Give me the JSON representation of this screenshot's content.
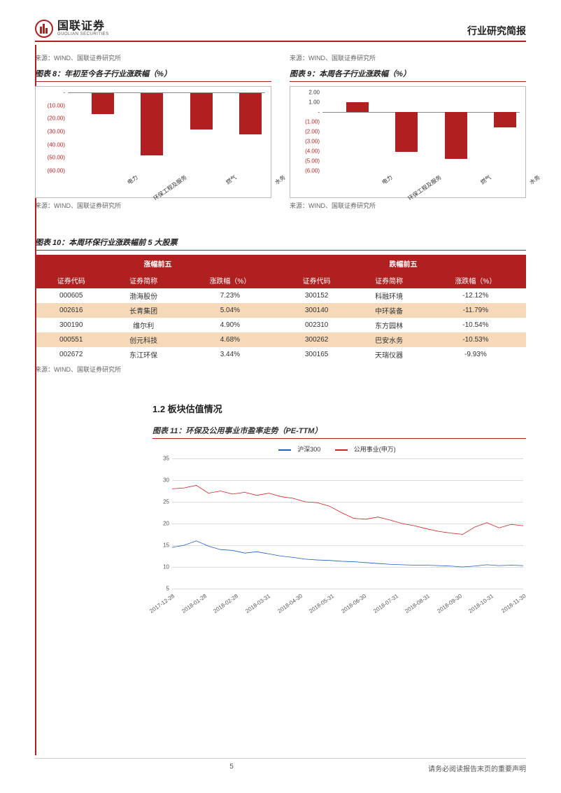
{
  "header": {
    "logo_cn": "国联证券",
    "logo_en": "GUOLIAN SECURITIES",
    "title": "行业研究简报"
  },
  "colors": {
    "brand_red": "#b02020",
    "blue": "#1f5fbf",
    "alt_row": "#f5d9b8",
    "grid": "#dddddd",
    "bg": "#ffffff"
  },
  "source_text": "来源：WIND、国联证券研究所",
  "chart8": {
    "title": "图表 8：年初至今各子行业涨跌幅（%）",
    "type": "bar",
    "categories": [
      "电力",
      "环保工程及服务",
      "燃气",
      "水务"
    ],
    "values": [
      -16,
      -48,
      -28,
      -32
    ],
    "ylim": [
      -60,
      0
    ],
    "yticks": [
      "-",
      "(10.00)",
      "(20.00)",
      "(30.00)",
      "(40.00)",
      "(50.00)",
      "(60.00)"
    ],
    "bar_color": "#b02020"
  },
  "chart9": {
    "title": "图表 9：本周各子行业涨跌幅（%）",
    "type": "bar",
    "categories": [
      "电力",
      "环保工程及服务",
      "燃气",
      "水务"
    ],
    "values": [
      1.0,
      -4.1,
      -4.8,
      -1.6
    ],
    "ylim": [
      -6,
      2
    ],
    "yticks_pos": [
      "2.00",
      "1.00",
      "-"
    ],
    "yticks_neg": [
      "(1.00)",
      "(2.00)",
      "(3.00)",
      "(4.00)",
      "(5.00)",
      "(6.00)"
    ],
    "bar_color": "#b02020"
  },
  "table10": {
    "title": "图表 10：本周环保行业涨跌幅前 5 大股票",
    "header_top": [
      "涨幅前五",
      "跌幅前五"
    ],
    "columns": [
      "证券代码",
      "证券简称",
      "涨跌幅（%）",
      "证券代码",
      "证券简称",
      "涨跌幅（%）"
    ],
    "rows": [
      [
        "000605",
        "渤海股份",
        "7.23%",
        "300152",
        "科融环境",
        "-12.12%"
      ],
      [
        "002616",
        "长青集团",
        "5.04%",
        "300140",
        "中环装备",
        "-11.79%"
      ],
      [
        "300190",
        "维尔利",
        "4.90%",
        "002310",
        "东方园林",
        "-10.54%"
      ],
      [
        "000551",
        "创元科技",
        "4.68%",
        "300262",
        "巴安水务",
        "-10.53%"
      ],
      [
        "002672",
        "东江环保",
        "3.44%",
        "300165",
        "天瑞仪器",
        "-9.93%"
      ]
    ]
  },
  "section12": "1.2 板块估值情况",
  "chart11": {
    "title": "图表 11：环保及公用事业市盈率走势（PE-TTM）",
    "type": "line",
    "legend": [
      "沪深300",
      "公用事业(申万)"
    ],
    "legend_colors": [
      "#1f5fbf",
      "#d02020"
    ],
    "ylim": [
      5,
      35
    ],
    "ytick_step": 5,
    "yticks": [
      5,
      10,
      15,
      20,
      25,
      30,
      35
    ],
    "x_labels": [
      "2017-12-28",
      "2018-01-28",
      "2018-02-28",
      "2018-03-31",
      "2018-04-30",
      "2018-05-31",
      "2018-06-30",
      "2018-07-31",
      "2018-08-31",
      "2018-09-30",
      "2018-10-31",
      "2018-11-30"
    ],
    "series1": [
      14.5,
      15,
      16,
      14.8,
      14,
      13.8,
      13.2,
      13.5,
      13,
      12.5,
      12.2,
      11.8,
      11.6,
      11.5,
      11.3,
      11.2,
      11,
      10.8,
      10.6,
      10.5,
      10.4,
      10.4,
      10.3,
      10.2,
      10,
      10.2,
      10.5,
      10.3,
      10.4,
      10.3
    ],
    "series2": [
      28,
      28.2,
      28.8,
      27,
      27.5,
      26.8,
      27.2,
      26.5,
      27,
      26.2,
      25.8,
      25,
      24.8,
      24,
      22.5,
      21.2,
      21,
      21.5,
      20.8,
      20,
      19.5,
      18.8,
      18.2,
      17.8,
      17.5,
      19.2,
      20.2,
      19,
      19.8,
      19.5
    ]
  },
  "footer": {
    "page_no": "5",
    "notice": "请务必阅读报告末页的重要声明"
  }
}
